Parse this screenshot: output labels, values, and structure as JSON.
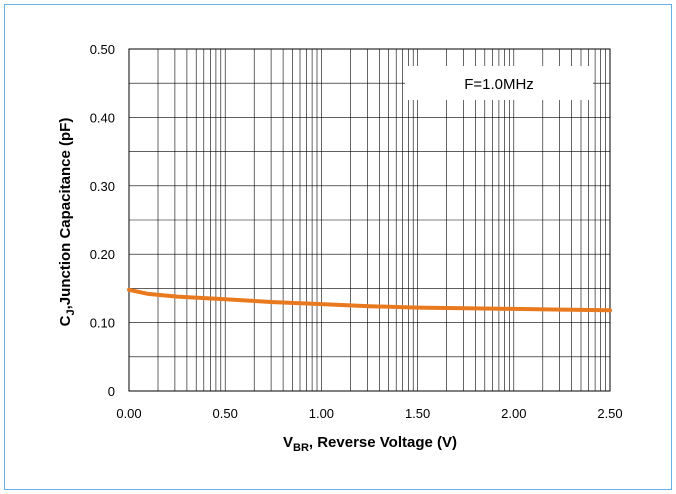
{
  "chart_data": {
    "type": "line",
    "title": "",
    "xlabel_main": "V",
    "xlabel_sub": "BR",
    "xlabel_rest": ", Reverse Voltage (V)",
    "ylabel_main": "C",
    "ylabel_sub": "J",
    "ylabel_rest": ",Junction Capacitance (pF)",
    "xlim": [
      0,
      2.5
    ],
    "ylim": [
      0,
      0.5
    ],
    "x_ticks": [
      "0.00",
      "0.50",
      "1.00",
      "1.50",
      "2.00",
      "2.50"
    ],
    "x_tick_values": [
      0,
      0.5,
      1.0,
      1.5,
      2.0,
      2.5
    ],
    "y_ticks": [
      "0",
      "0.10",
      "0.20",
      "0.30",
      "0.40",
      "0.50"
    ],
    "y_tick_values": [
      0,
      0.1,
      0.2,
      0.3,
      0.4,
      0.5
    ],
    "grid": true,
    "annotation": "F=1.0MHz",
    "series": [
      {
        "color": "#e8791e",
        "x": [
          0.0,
          0.1,
          0.25,
          0.5,
          0.75,
          1.0,
          1.25,
          1.5,
          1.75,
          2.0,
          2.25,
          2.5
        ],
        "y": [
          0.148,
          0.142,
          0.138,
          0.134,
          0.13,
          0.127,
          0.124,
          0.122,
          0.121,
          0.12,
          0.119,
          0.118
        ]
      }
    ]
  }
}
